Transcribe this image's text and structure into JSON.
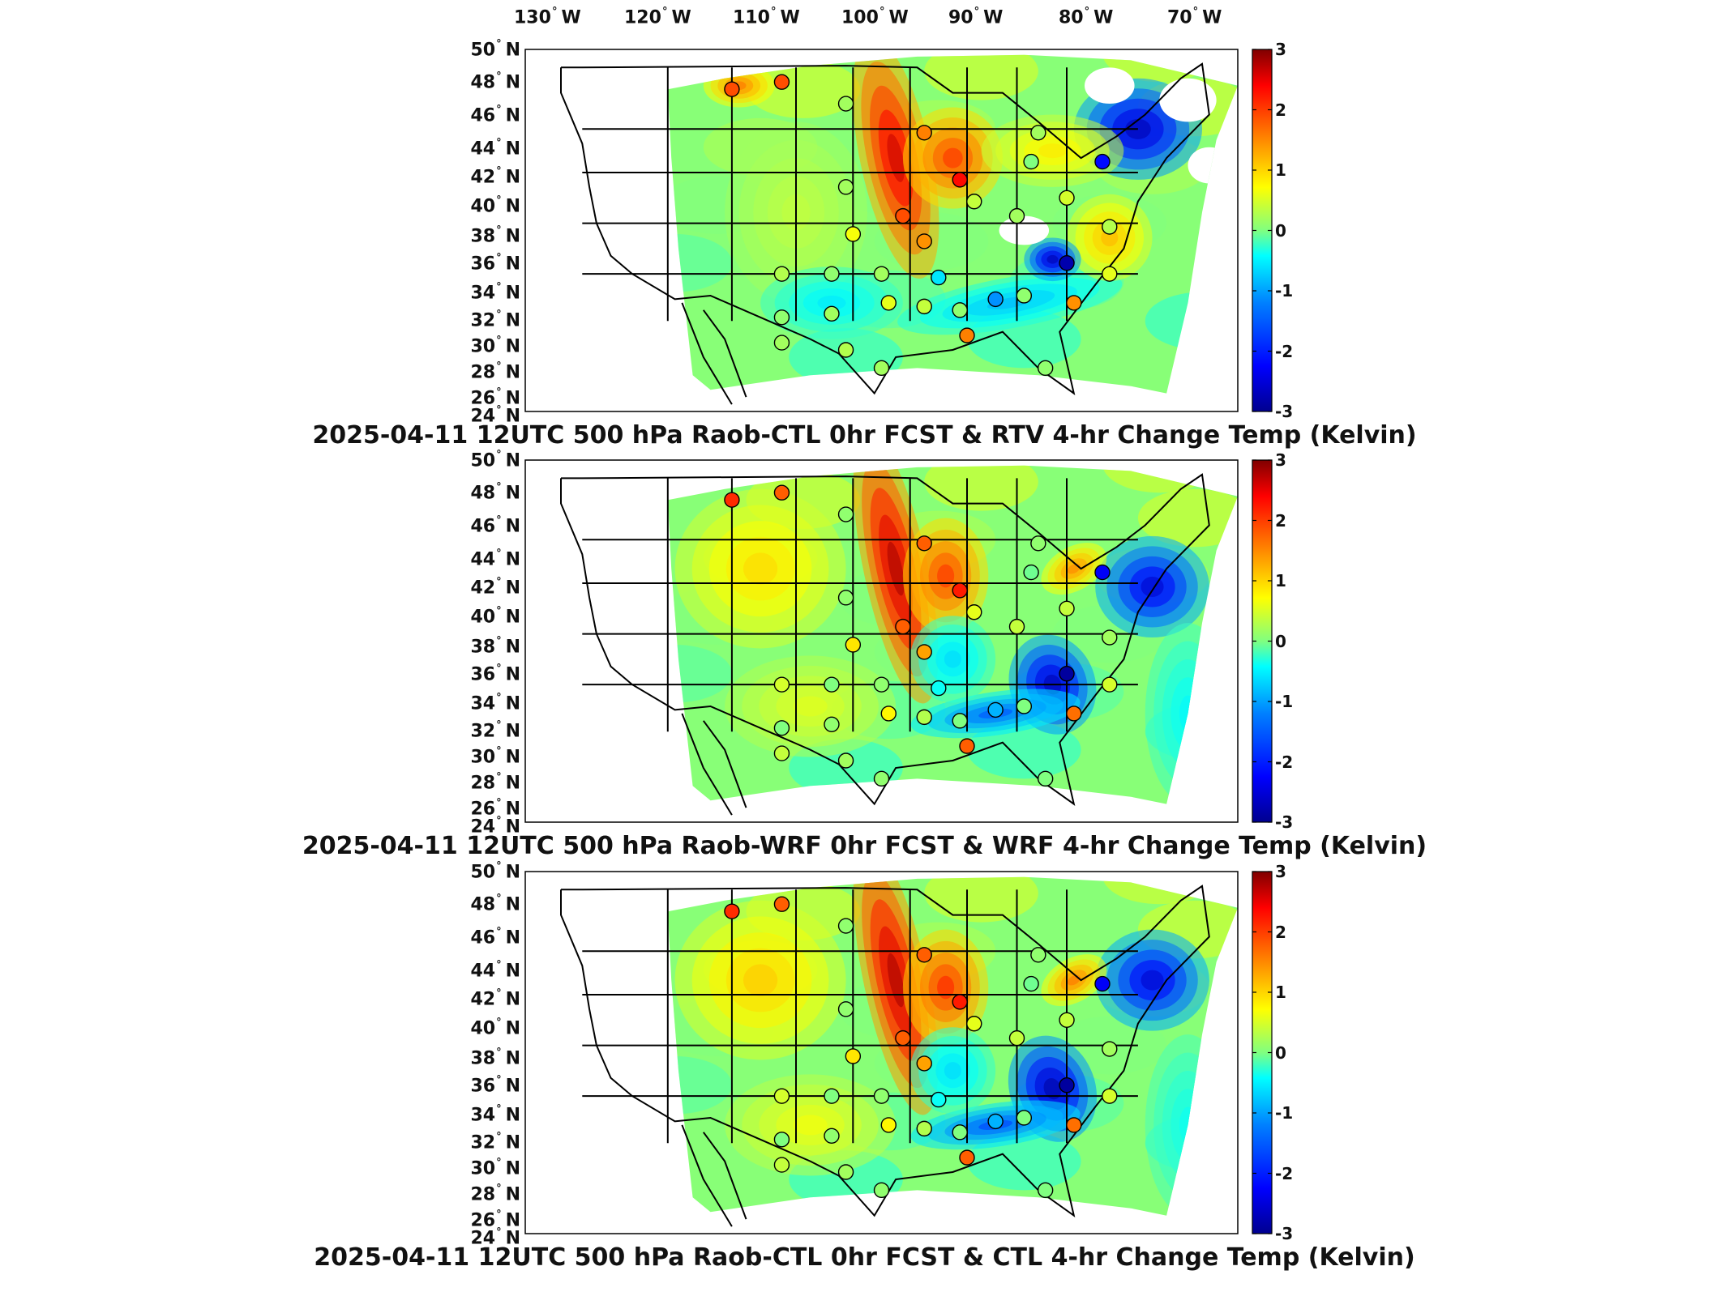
{
  "figure": {
    "lon_labels": [
      {
        "value": "130",
        "unit": "W"
      },
      {
        "value": "120",
        "unit": "W"
      },
      {
        "value": "110",
        "unit": "W"
      },
      {
        "value": "100",
        "unit": "W"
      },
      {
        "value": "90",
        "unit": "W"
      },
      {
        "value": "80",
        "unit": "W"
      },
      {
        "value": "70",
        "unit": "W"
      }
    ],
    "lat_labels": [
      {
        "value": "50",
        "unit": "N"
      },
      {
        "value": "48",
        "unit": "N"
      },
      {
        "value": "46",
        "unit": "N"
      },
      {
        "value": "44",
        "unit": "N"
      },
      {
        "value": "42",
        "unit": "N"
      },
      {
        "value": "40",
        "unit": "N"
      },
      {
        "value": "38",
        "unit": "N"
      },
      {
        "value": "36",
        "unit": "N"
      },
      {
        "value": "34",
        "unit": "N"
      },
      {
        "value": "32",
        "unit": "N"
      },
      {
        "value": "30",
        "unit": "N"
      },
      {
        "value": "28",
        "unit": "N"
      },
      {
        "value": "26",
        "unit": "N"
      },
      {
        "value": "24",
        "unit": "N"
      }
    ],
    "colorbar_ticks": [
      "3",
      "2",
      "1",
      "0",
      "-1",
      "-2",
      "-3"
    ],
    "colorbar_range": [
      -3,
      3
    ],
    "colormap": [
      "#00008f",
      "#0000ff",
      "#0080ff",
      "#00ffff",
      "#80ff80",
      "#ffff00",
      "#ff8000",
      "#ff0000",
      "#800000"
    ],
    "panels": [
      {
        "title": "2025-04-11 12UTC 500 hPa Raob-CTL 0hr FCST & RTV 4-hr Change Temp (Kelvin)"
      },
      {
        "title": "2025-04-11 12UTC 500 hPa Raob-WRF 0hr FCST & WRF 4-hr Change Temp (Kelvin)"
      },
      {
        "title": "2025-04-11 12UTC 500 hPa Raob-CTL 0hr FCST & CTL 4-hr Change Temp (Kelvin)"
      }
    ]
  }
}
